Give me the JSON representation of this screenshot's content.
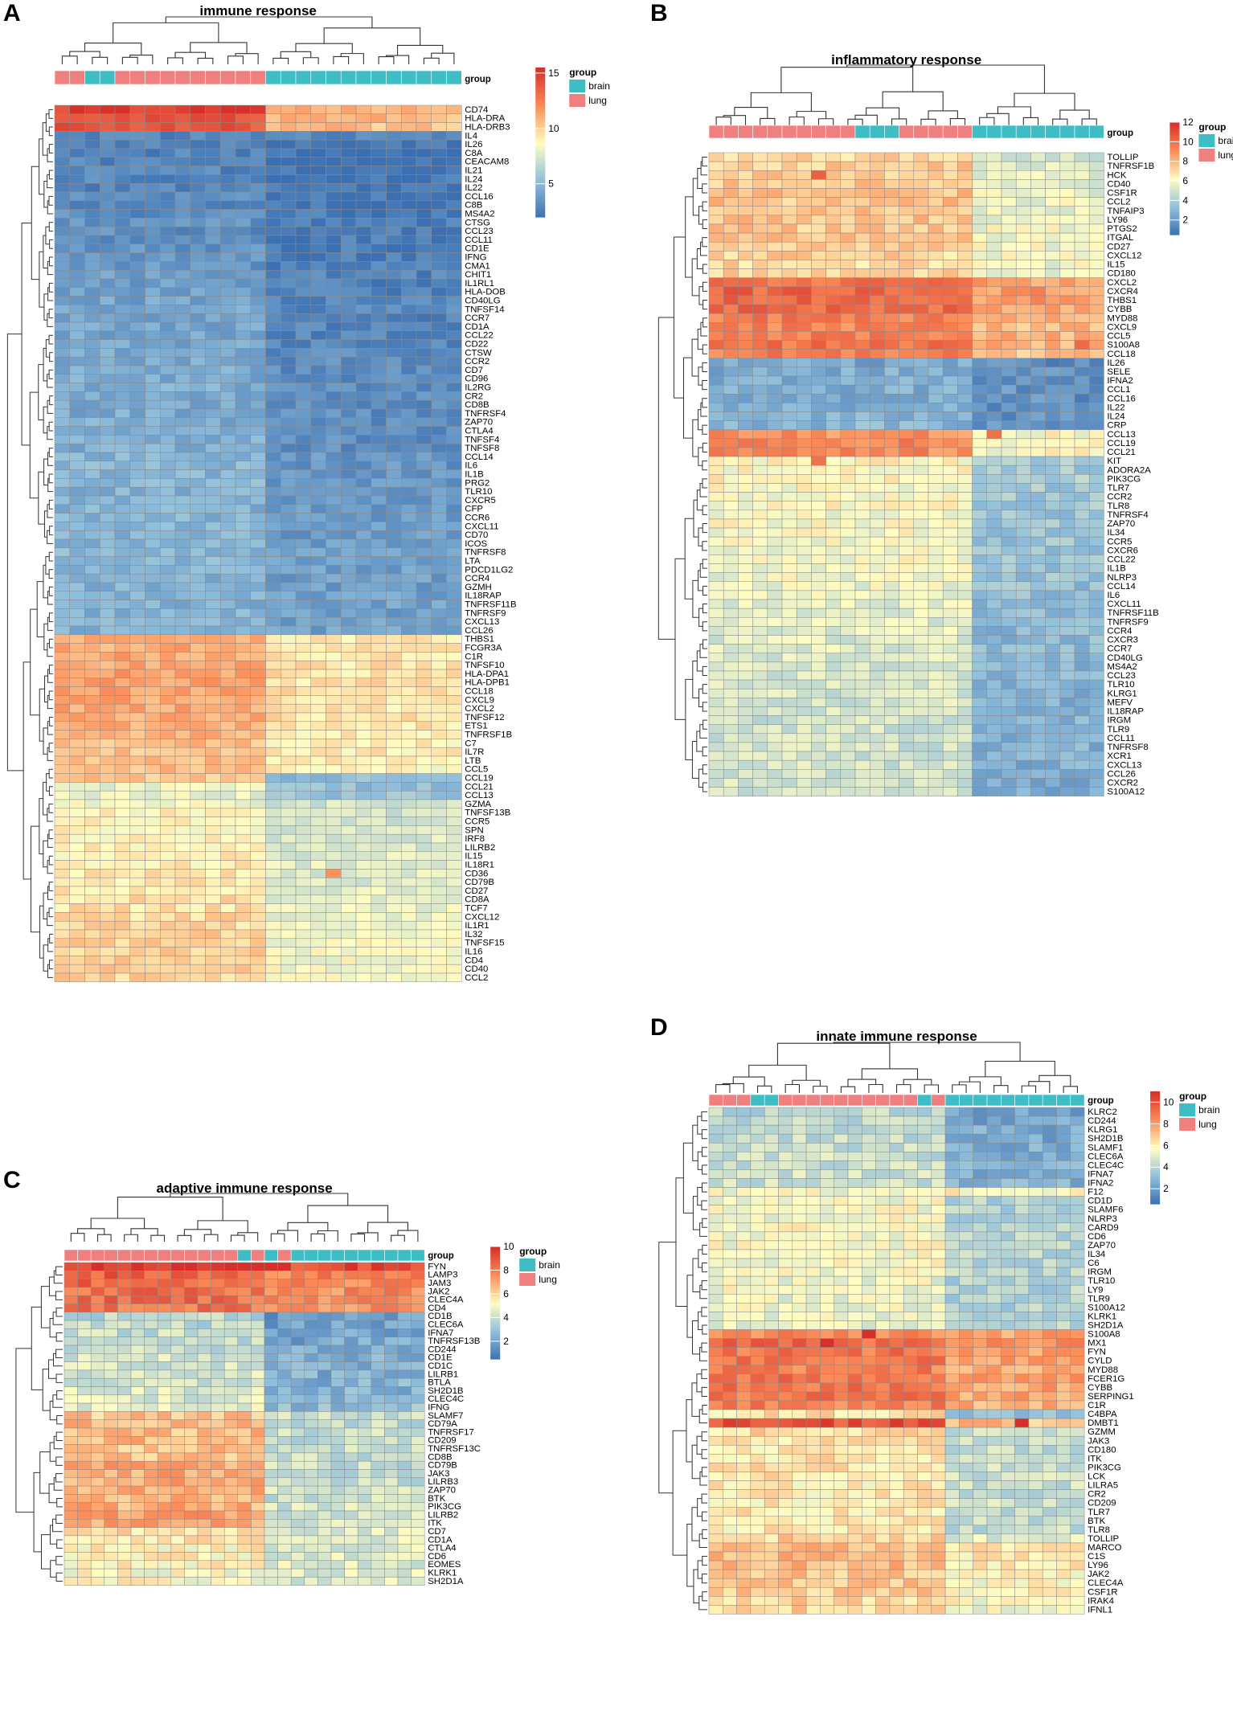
{
  "colors": {
    "brain": "#3EBDC4",
    "lung": "#F08080",
    "scale_low": "#3B6FB1",
    "scale_mid": "#FFFDC2",
    "scale_high": "#D7302A",
    "dendrogram": "#333333",
    "grid": "#8a8a8a"
  },
  "chart_data": [
    {
      "type": "heatmap",
      "panel": "A",
      "title": "immune response",
      "group_label": "group",
      "legend_title": "group",
      "legend_items": [
        "brain",
        "lung"
      ],
      "colorbar_range": [
        2,
        15.5
      ],
      "colorbar_ticks": [
        "15",
        "10",
        "5"
      ],
      "colorbar_tick_values": [
        15,
        10,
        5
      ],
      "n_cols": 27,
      "column_groups": [
        "lung",
        "lung",
        "brain",
        "brain",
        "lung",
        "lung",
        "lung",
        "lung",
        "lung",
        "lung",
        "lung",
        "lung",
        "lung",
        "lung",
        "brain",
        "brain",
        "brain",
        "brain",
        "brain",
        "brain",
        "brain",
        "brain",
        "brain",
        "brain",
        "brain",
        "brain",
        "brain"
      ],
      "divider_col": 14,
      "rows": [
        "CD74",
        "HLA-DRA",
        "HLA-DRB3",
        "IL4",
        "IL26",
        "C8A",
        "CEACAM8",
        "IL21",
        "IL24",
        "IL22",
        "CCL16",
        "C8B",
        "MS4A2",
        "CTSG",
        "CCL23",
        "CCL11",
        "CD1E",
        "IFNG",
        "CMA1",
        "CHIT1",
        "IL1RL1",
        "HLA-DOB",
        "CD40LG",
        "TNFSF14",
        "CCR7",
        "CD1A",
        "CCL22",
        "CD22",
        "CTSW",
        "CCR2",
        "CD7",
        "CD96",
        "IL2RG",
        "CR2",
        "CD8B",
        "TNFRSF4",
        "ZAP70",
        "CTLA4",
        "TNFSF4",
        "TNFSF8",
        "CCL14",
        "IL6",
        "IL1B",
        "PRG2",
        "TLR10",
        "CXCR5",
        "CFP",
        "CCR6",
        "CXCL11",
        "CD70",
        "ICOS",
        "TNFRSF8",
        "LTA",
        "PDCD1LG2",
        "CCR4",
        "GZMH",
        "IL18RAP",
        "TNFRSF11B",
        "TNFRSF9",
        "CXCL13",
        "CCL26",
        "THBS1",
        "FCGR3A",
        "C1R",
        "TNFSF10",
        "HLA-DPA1",
        "HLA-DPB1",
        "CCL18",
        "CXCL9",
        "CXCL2",
        "TNFSF12",
        "ETS1",
        "TNFRSF1B",
        "C7",
        "IL7R",
        "LTB",
        "CCL5",
        "CCL19",
        "CCL21",
        "CCL13",
        "GZMA",
        "TNFSF13B",
        "CCR5",
        "SPN",
        "IRF8",
        "LILRB2",
        "IL15",
        "IL18R1",
        "CD36",
        "CD79B",
        "CD27",
        "CD8A",
        "TCF7",
        "CXCL12",
        "IL1R1",
        "IL32",
        "TNFSF15",
        "IL16",
        "CD4",
        "CD40",
        "CCL2"
      ],
      "row_level_left": [
        15,
        14.5,
        14,
        3,
        2.8,
        2.8,
        3,
        3,
        3,
        3,
        3.2,
        3,
        3.3,
        3.6,
        3.3,
        3.5,
        3.6,
        3.6,
        3.7,
        4,
        4,
        4,
        4.2,
        4.3,
        4.3,
        4.3,
        4.3,
        4.4,
        4.4,
        4.5,
        4.5,
        4.5,
        4.6,
        4.5,
        4.5,
        4.5,
        4.6,
        4.6,
        4.7,
        4.7,
        5,
        5,
        5,
        5,
        4.8,
        4.8,
        4.9,
        4.9,
        5,
        5,
        5,
        5,
        5,
        4.9,
        4.9,
        4.9,
        4.8,
        4.8,
        4.8,
        4.8,
        4.8,
        11.2,
        11.2,
        11.3,
        11.3,
        11.5,
        11.5,
        11.4,
        11.3,
        11.3,
        11.1,
        11,
        11,
        10.6,
        10.6,
        10.6,
        10.6,
        10.4,
        8.2,
        8.2,
        8.4,
        9,
        9,
        9,
        9.1,
        9.2,
        9.2,
        9.2,
        9.3,
        9.4,
        9.4,
        9.6,
        9.6,
        9.8,
        9.8,
        10,
        10,
        10,
        10,
        10,
        10
      ],
      "row_level_right": [
        10.8,
        10.8,
        10.6,
        2.8,
        2.3,
        2.1,
        2.1,
        2.3,
        2.5,
        2.2,
        2.5,
        2.3,
        2.6,
        2.6,
        2.5,
        2.6,
        2.6,
        2.7,
        2.7,
        2.9,
        2.9,
        2.9,
        2.9,
        3,
        3,
        3,
        2.9,
        3.1,
        3.1,
        3.2,
        3.2,
        3.2,
        3.3,
        3.3,
        3.3,
        3.3,
        3.3,
        3.4,
        3.4,
        3.4,
        3.6,
        3.6,
        3.6,
        3.7,
        3.7,
        3.7,
        3.8,
        3.8,
        3.8,
        3.9,
        3.9,
        4,
        4,
        4,
        4,
        4,
        4.1,
        4.1,
        4.1,
        4.1,
        4.1,
        9.2,
        9.4,
        9.4,
        9.6,
        9.6,
        9.6,
        9.6,
        9.5,
        9.5,
        9.6,
        9.4,
        9.3,
        9.2,
        9.2,
        9.2,
        9,
        5.4,
        5.4,
        5.6,
        7.4,
        7.4,
        7.4,
        7.6,
        7.6,
        7.6,
        7.7,
        7.8,
        7.8,
        7.8,
        8,
        8,
        8.1,
        8.2,
        8.2,
        8.4,
        8.4,
        8.4,
        8.5,
        8.5,
        8.5
      ],
      "hot_cells": [
        {
          "row": 88,
          "col": 18,
          "value": 12
        }
      ]
    },
    {
      "type": "heatmap",
      "panel": "B",
      "title": "inflammatory response",
      "group_label": "group",
      "legend_title": "group",
      "legend_items": [
        "brain",
        "lung"
      ],
      "colorbar_range": [
        0.5,
        12
      ],
      "colorbar_ticks": [
        "12",
        "10",
        "8",
        "6",
        "4",
        "2"
      ],
      "colorbar_tick_values": [
        12,
        10,
        8,
        6,
        4,
        2
      ],
      "n_cols": 27,
      "column_groups": [
        "lung",
        "lung",
        "lung",
        "lung",
        "lung",
        "lung",
        "lung",
        "lung",
        "lung",
        "lung",
        "brain",
        "brain",
        "brain",
        "lung",
        "lung",
        "lung",
        "lung",
        "lung",
        "brain",
        "brain",
        "brain",
        "brain",
        "brain",
        "brain",
        "brain",
        "brain",
        "brain"
      ],
      "divider_col": 18,
      "rows": [
        "TOLLIP",
        "TNFRSF1B",
        "HCK",
        "CD40",
        "CSF1R",
        "CCL2",
        "TNFAIP3",
        "LY96",
        "PTGS2",
        "ITGAL",
        "CD27",
        "CXCL12",
        "IL15",
        "CD180",
        "CXCL2",
        "CXCR4",
        "THBS1",
        "CYBB",
        "MYD88",
        "CXCL9",
        "CCL5",
        "S100A8",
        "CCL18",
        "IL26",
        "SELE",
        "IFNA2",
        "CCL1",
        "CCL16",
        "IL22",
        "IL24",
        "CRP",
        "CCL13",
        "CCL19",
        "CCL21",
        "KIT",
        "ADORA2A",
        "PIK3CG",
        "TLR7",
        "CCR2",
        "TLR8",
        "TNFRSF4",
        "ZAP70",
        "IL34",
        "CCR5",
        "CXCR6",
        "CCL22",
        "IL1B",
        "NLRP3",
        "CCL14",
        "IL6",
        "CXCL11",
        "TNFRSF11B",
        "TNFRSF9",
        "CCR4",
        "CXCR3",
        "CCR7",
        "CD40LG",
        "MS4A2",
        "CCL23",
        "TLR10",
        "KLRG1",
        "MEFV",
        "IL18RAP",
        "IRGM",
        "TLR9",
        "CCL11",
        "TNFRSF8",
        "XCR1",
        "CXCL13",
        "CCL26",
        "CXCR2",
        "S100A12"
      ],
      "row_level_left": [
        7.3,
        7.5,
        7.6,
        7.6,
        7.7,
        7.7,
        7.8,
        7.7,
        7.6,
        7.6,
        7.4,
        7.3,
        7.2,
        7.2,
        10,
        10.3,
        10.4,
        10.2,
        9.6,
        9.3,
        9.6,
        9.8,
        9.5,
        2.6,
        2.7,
        2.8,
        2.8,
        2.8,
        2.8,
        3,
        3.1,
        9.1,
        9.4,
        9.2,
        6.4,
        6.2,
        6.4,
        6.2,
        6.2,
        6.2,
        6,
        6.1,
        6.1,
        6,
        6,
        6,
        5.9,
        5.9,
        5.8,
        5.8,
        5.6,
        5.5,
        5.5,
        5.5,
        5.4,
        5.4,
        5.3,
        5.3,
        5.2,
        5.2,
        5.1,
        5.1,
        5.1,
        5,
        5,
        5,
        5,
        5,
        5,
        5,
        5,
        4.9
      ],
      "row_level_right": [
        5,
        5.3,
        5.5,
        5.6,
        5.7,
        5.8,
        5.9,
        6,
        6,
        6,
        6,
        6,
        5.9,
        5.8,
        8.6,
        8.8,
        8.8,
        8.4,
        8.2,
        8,
        8.2,
        8.2,
        7.6,
        1.6,
        1.7,
        1.8,
        1.8,
        1.7,
        1.7,
        1.8,
        1.9,
        6.2,
        6.3,
        6.2,
        4,
        3.8,
        4,
        3.8,
        3.8,
        3.7,
        3.6,
        3.7,
        3.6,
        3.6,
        3.6,
        3.6,
        3.5,
        3.5,
        3.4,
        3.4,
        3.3,
        3.3,
        3.3,
        3.2,
        3.2,
        3.2,
        3.1,
        3.1,
        3.1,
        3,
        3,
        3,
        2.9,
        2.9,
        2.9,
        2.9,
        2.8,
        2.8,
        2.8,
        2.8,
        2.8,
        2.8
      ],
      "hot_cells": [
        {
          "row": 31,
          "col": 19,
          "value": 10
        },
        {
          "row": 2,
          "col": 7,
          "value": 10.5
        },
        {
          "row": 34,
          "col": 7,
          "value": 10
        },
        {
          "row": 21,
          "col": 25,
          "value": 10.2
        }
      ]
    },
    {
      "type": "heatmap",
      "panel": "C",
      "title": "adaptive immune response",
      "group_label": "group",
      "legend_title": "group",
      "legend_items": [
        "brain",
        "lung"
      ],
      "colorbar_range": [
        0.5,
        10
      ],
      "colorbar_ticks": [
        "10",
        "8",
        "6",
        "4",
        "2"
      ],
      "colorbar_tick_values": [
        10,
        8,
        6,
        4,
        2
      ],
      "n_cols": 27,
      "column_groups": [
        "lung",
        "lung",
        "lung",
        "lung",
        "lung",
        "lung",
        "lung",
        "lung",
        "lung",
        "lung",
        "lung",
        "lung",
        "lung",
        "brain",
        "lung",
        "brain",
        "lung",
        "brain",
        "brain",
        "brain",
        "brain",
        "brain",
        "brain",
        "brain",
        "brain",
        "brain",
        "brain"
      ],
      "divider_col": 15,
      "rows": [
        "FYN",
        "LAMP3",
        "JAM3",
        "JAK2",
        "CLEC4A",
        "CD4",
        "CD1B",
        "CLEC6A",
        "IFNA7",
        "TNFRSF13B",
        "CD244",
        "CD1E",
        "CD1C",
        "LILRB1",
        "BTLA",
        "SH2D1B",
        "CLEC4C",
        "IFNG",
        "SLAMF7",
        "CD79A",
        "TNFRSF17",
        "CD209",
        "TNFRSF13C",
        "CD8B",
        "CD79B",
        "JAK3",
        "LILRB3",
        "ZAP70",
        "BTK",
        "PIK3CG",
        "LILRB2",
        "ITK",
        "CD7",
        "CD1A",
        "CTLA4",
        "CD6",
        "EOMES",
        "KLRK1",
        "SH2D1A"
      ],
      "row_level_left": [
        9.8,
        8.8,
        8.6,
        8.4,
        8.4,
        8.2,
        3.8,
        3.8,
        4,
        4,
        4,
        4.2,
        4.3,
        4.3,
        4.4,
        4.4,
        4.5,
        4.6,
        6.4,
        6.6,
        6.6,
        6.6,
        6.5,
        6.6,
        7,
        7,
        7,
        6.9,
        6.9,
        6.9,
        7.1,
        7,
        5.8,
        5.6,
        5.5,
        5.4,
        5.3,
        5.2,
        5.2
      ],
      "row_level_right": [
        9.3,
        7.8,
        7.6,
        7.6,
        7.5,
        7.4,
        1.8,
        1.9,
        2,
        2.1,
        2.2,
        2.3,
        2.3,
        2.4,
        2.5,
        2.6,
        2.7,
        2.8,
        4,
        4,
        4,
        4,
        4,
        4,
        4,
        4.1,
        4.1,
        4.2,
        4.2,
        4.3,
        4.3,
        4.4,
        4.6,
        4.6,
        4.6,
        4.6,
        4.6,
        4.6,
        4.6
      ],
      "hot_cells": []
    },
    {
      "type": "heatmap",
      "panel": "D",
      "title": "innate immune response",
      "group_label": "group",
      "legend_title": "group",
      "legend_items": [
        "brain",
        "lung"
      ],
      "colorbar_range": [
        0.6,
        11
      ],
      "colorbar_ticks": [
        "10",
        "8",
        "6",
        "4",
        "2"
      ],
      "colorbar_tick_values": [
        10,
        8,
        6,
        4,
        2
      ],
      "n_cols": 27,
      "column_groups": [
        "lung",
        "lung",
        "lung",
        "brain",
        "brain",
        "lung",
        "lung",
        "lung",
        "lung",
        "lung",
        "lung",
        "lung",
        "lung",
        "lung",
        "lung",
        "brain",
        "lung",
        "brain",
        "brain",
        "brain",
        "brain",
        "brain",
        "brain",
        "brain",
        "brain",
        "brain",
        "brain"
      ],
      "divider_col": 17,
      "rows": [
        "KLRC2",
        "CD244",
        "KLRG1",
        "SH2D1B",
        "SLAMF1",
        "CLEC6A",
        "CLEC4C",
        "IFNA7",
        "IFNA2",
        "F12",
        "CD1D",
        "SLAMF6",
        "NLRP3",
        "CARD9",
        "CD6",
        "ZAP70",
        "IL34",
        "C6",
        "IRGM",
        "TLR10",
        "LY9",
        "TLR9",
        "S100A12",
        "KLRK1",
        "SH2D1A",
        "S100A8",
        "MX1",
        "FYN",
        "CYLD",
        "MYD88",
        "FCER1G",
        "CYBB",
        "SERPING1",
        "C1R",
        "C4BPA",
        "DMBT1",
        "GZMM",
        "JAK3",
        "CD180",
        "ITK",
        "PIK3CG",
        "LCK",
        "LILRA5",
        "CR2",
        "CD209",
        "TLR7",
        "BTK",
        "TLR8",
        "TOLLIP",
        "MARCO",
        "C1S",
        "LY96",
        "JAK2",
        "CLEC4A",
        "CSF1R",
        "IRAK4",
        "IFNL1"
      ],
      "row_level_left": [
        4.2,
        4.3,
        4.3,
        4.4,
        4.4,
        4.5,
        4.5,
        4.6,
        4.6,
        5.6,
        5.6,
        5.6,
        5.6,
        5.7,
        5.7,
        5.7,
        5.6,
        5.6,
        5.6,
        5.5,
        5.5,
        5.4,
        5.4,
        5.3,
        5.3,
        8.6,
        9.4,
        9,
        9,
        8.8,
        9.2,
        9,
        9,
        8.8,
        6.4,
        10,
        6.6,
        6.4,
        6.4,
        6.3,
        6.3,
        6.3,
        6.2,
        6.2,
        6.2,
        6.2,
        6.1,
        6.1,
        6.8,
        7.4,
        7.4,
        7.3,
        7,
        7,
        6.9,
        6.8,
        6.8
      ],
      "row_level_right": [
        2.4,
        2.4,
        2.5,
        2.5,
        2.6,
        2.6,
        2.7,
        2.7,
        2.8,
        5.8,
        4,
        4,
        4,
        4.1,
        4.1,
        4.1,
        4.1,
        4.1,
        4.1,
        4,
        4,
        4,
        4,
        4,
        4,
        7.8,
        8.4,
        8,
        8,
        7.6,
        8,
        7.8,
        7.8,
        7.6,
        3.2,
        7.2,
        4.4,
        4.4,
        4.4,
        4.4,
        4.5,
        4.5,
        4.5,
        4.5,
        4.5,
        4.5,
        4.4,
        4.4,
        5.2,
        6.4,
        6.2,
        6.1,
        5.9,
        5.8,
        5.8,
        5.7,
        5.6
      ],
      "hot_cells": [
        {
          "row": 26,
          "col": 8,
          "value": 11
        },
        {
          "row": 25,
          "col": 11,
          "value": 11
        },
        {
          "row": 35,
          "col": 22,
          "value": 11
        }
      ]
    }
  ]
}
